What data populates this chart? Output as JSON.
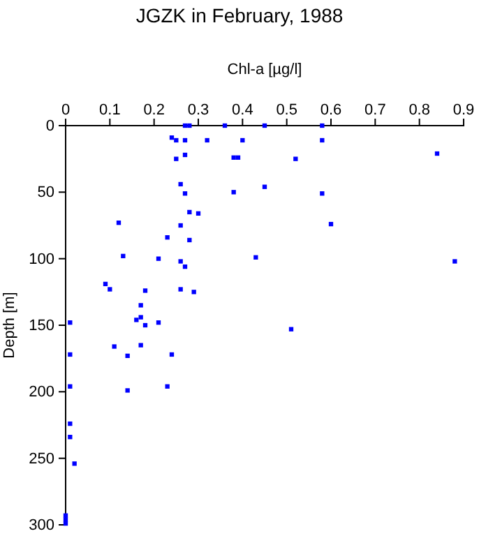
{
  "chart_data": {
    "type": "scatter",
    "title": "JGZK in February, 1988",
    "xlabel": "Chl-a [µg/l]",
    "ylabel": "Depth [m]",
    "xlim": [
      0,
      0.9
    ],
    "xticks": [
      0,
      0.1,
      0.2,
      0.3,
      0.4,
      0.5,
      0.6,
      0.7,
      0.8,
      0.9
    ],
    "ylim": [
      300,
      0
    ],
    "yticks": [
      0,
      50,
      100,
      150,
      200,
      250,
      300
    ],
    "grid": false,
    "marker": "square",
    "series": [
      {
        "color": "#0000ff",
        "x": [
          0.27,
          0.28,
          0.36,
          0.45,
          0.58,
          0.24,
          0.25,
          0.27,
          0.32,
          0.4,
          0.58,
          0.84,
          0.27,
          0.25,
          0.38,
          0.39,
          0.52,
          0.26,
          0.27,
          0.38,
          0.45,
          0.58,
          0.28,
          0.3,
          0.12,
          0.26,
          0.6,
          0.23,
          0.28,
          0.13,
          0.21,
          0.26,
          0.27,
          0.43,
          0.88,
          0.09,
          0.1,
          0.18,
          0.26,
          0.29,
          0.17,
          0.17,
          0.16,
          0.18,
          0.21,
          0.01,
          0.51,
          0.01,
          0.11,
          0.14,
          0.17,
          0.24,
          0.01,
          0.14,
          0.23,
          0.01,
          0.01,
          0.02,
          0,
          0,
          0
        ],
        "values": [
          0,
          0,
          0,
          0,
          0,
          9,
          11,
          11,
          11,
          11,
          11,
          21,
          22,
          25,
          24,
          24,
          25,
          44,
          51,
          50,
          46,
          51,
          65,
          66,
          73,
          75,
          74,
          84,
          86,
          98,
          100,
          102,
          106,
          99,
          102,
          119,
          123,
          124,
          123,
          125,
          135,
          144,
          146,
          150,
          148,
          148,
          153,
          172,
          166,
          173,
          165,
          172,
          196,
          199,
          196,
          224,
          234,
          254,
          293,
          296,
          299
        ]
      }
    ]
  }
}
